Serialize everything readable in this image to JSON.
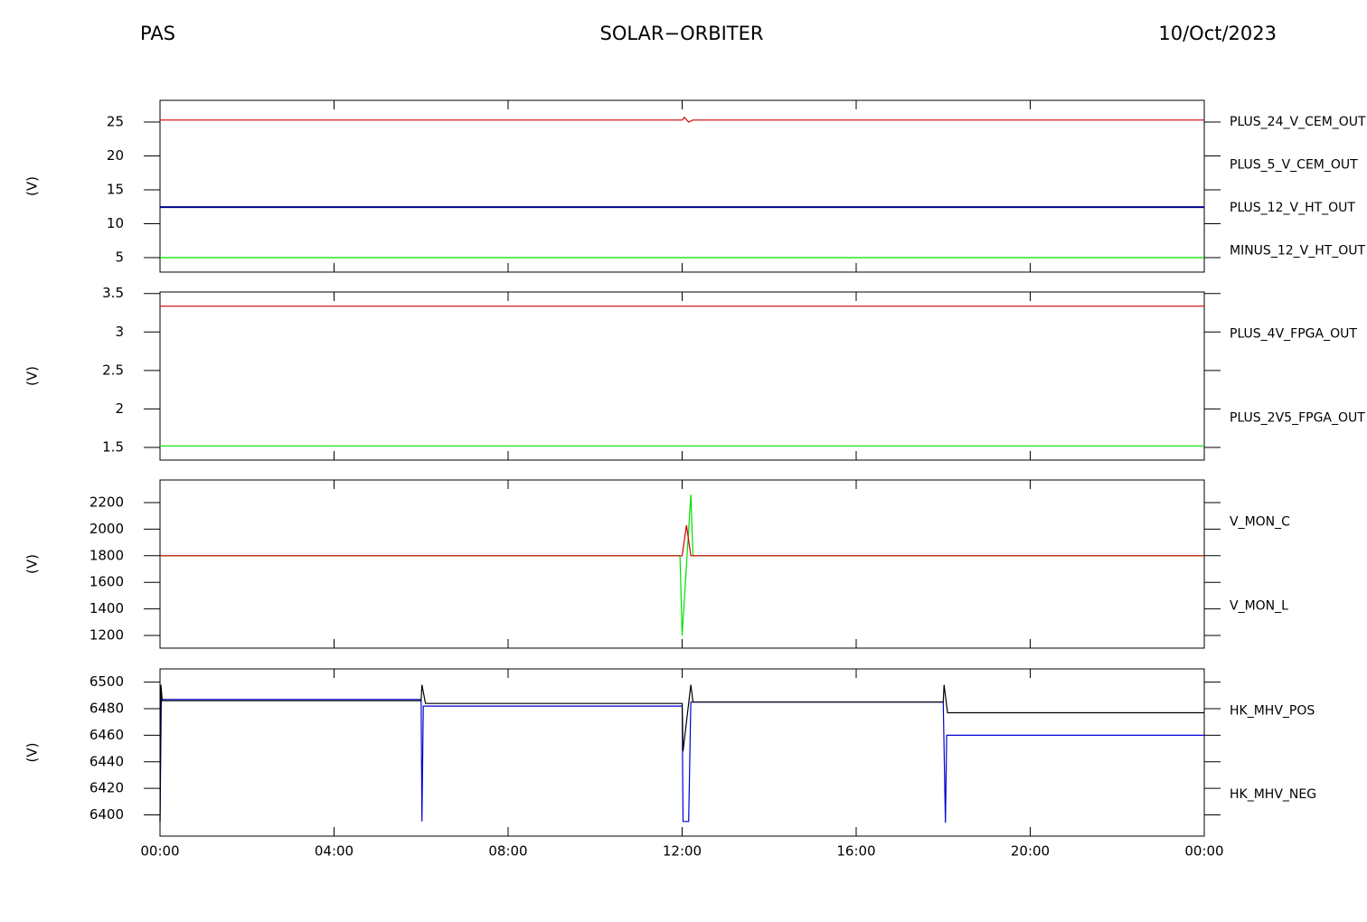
{
  "header": {
    "left": "PAS",
    "center": "SOLAR−ORBITER",
    "right": "10/Oct/2023"
  },
  "chart_data": [
    {
      "type": "line",
      "ylabel": "(V)",
      "xlim": [
        0,
        24
      ],
      "ylim": [
        2.87,
        28.2
      ],
      "yticks": [
        5,
        10,
        15,
        20,
        25
      ],
      "xticks": [
        {
          "value": 0,
          "label": "00:00"
        },
        {
          "value": 4,
          "label": "04:00"
        },
        {
          "value": 8,
          "label": "08:00"
        },
        {
          "value": 12,
          "label": "12:00"
        },
        {
          "value": 16,
          "label": "16:00"
        },
        {
          "value": 20,
          "label": "20:00"
        },
        {
          "value": 24,
          "label": "00:00"
        }
      ],
      "series": [
        {
          "name": "PLUS_24_V_CEM_OUT",
          "color": "#d40000",
          "x": [
            0,
            12,
            12.05,
            12.15,
            12.25,
            24
          ],
          "values": [
            25.3,
            25.3,
            25.7,
            25.0,
            25.3,
            25.3
          ]
        },
        {
          "name": "PLUS_5_V_CEM_OUT",
          "color": "#00e000",
          "x": [
            0,
            24
          ],
          "values": [
            5,
            5
          ]
        },
        {
          "name": "PLUS_12_V_HT_OUT",
          "color": "#000090",
          "x": [
            0,
            24
          ],
          "values": [
            12.45,
            12.45
          ]
        },
        {
          "name": "MINUS_12_V_HT_OUT",
          "color": "#000000",
          "x": [
            0,
            24
          ],
          "values": [
            12.45,
            12.45
          ]
        }
      ]
    },
    {
      "type": "line",
      "ylabel": "(V)",
      "xlim": [
        0,
        24
      ],
      "ylim": [
        1.335,
        3.52
      ],
      "yticks": [
        1.5,
        2.0,
        2.5,
        3.0,
        3.5
      ],
      "xticks": [
        {
          "value": 0,
          "label": "00:00"
        },
        {
          "value": 4,
          "label": "04:00"
        },
        {
          "value": 8,
          "label": "08:00"
        },
        {
          "value": 12,
          "label": "12:00"
        },
        {
          "value": 16,
          "label": "16:00"
        },
        {
          "value": 20,
          "label": "20:00"
        },
        {
          "value": 24,
          "label": "00:00"
        }
      ],
      "series": [
        {
          "name": "PLUS_4V_FPGA_OUT",
          "color": "#d40000",
          "x": [
            0,
            24
          ],
          "values": [
            3.335,
            3.335
          ]
        },
        {
          "name": "PLUS_2V5_FPGA_OUT",
          "color": "#00e000",
          "x": [
            0,
            24
          ],
          "values": [
            1.52,
            1.52
          ]
        }
      ]
    },
    {
      "type": "line",
      "ylabel": "(V)",
      "xlim": [
        0,
        24
      ],
      "ylim": [
        1105,
        2370
      ],
      "yticks": [
        1200,
        1400,
        1600,
        1800,
        2000,
        2200
      ],
      "xticks": [
        {
          "value": 0,
          "label": "00:00"
        },
        {
          "value": 4,
          "label": "04:00"
        },
        {
          "value": 8,
          "label": "08:00"
        },
        {
          "value": 12,
          "label": "12:00"
        },
        {
          "value": 16,
          "label": "16:00"
        },
        {
          "value": 20,
          "label": "20:00"
        },
        {
          "value": 24,
          "label": "00:00"
        }
      ],
      "series": [
        {
          "name": "V_MON_C",
          "color": "#d40000",
          "x": [
            0,
            12,
            12.1,
            12.2,
            24
          ],
          "values": [
            1800,
            1800,
            2030,
            1800,
            1800
          ]
        },
        {
          "name": "V_MON_L",
          "color": "#00e000",
          "x": [
            0,
            11.95,
            12.0,
            12.2,
            12.25,
            24
          ],
          "values": [
            1800,
            1800,
            1200,
            2260,
            1800,
            1800
          ]
        }
      ]
    },
    {
      "type": "line",
      "ylabel": "(V)",
      "xlim": [
        0,
        24
      ],
      "ylim": [
        6384,
        6510
      ],
      "yticks": [
        6400,
        6420,
        6440,
        6460,
        6480,
        6500
      ],
      "xticks": [
        {
          "value": 0,
          "label": "00:00"
        },
        {
          "value": 4,
          "label": "04:00"
        },
        {
          "value": 8,
          "label": "08:00"
        },
        {
          "value": 12,
          "label": "12:00"
        },
        {
          "value": 16,
          "label": "16:00"
        },
        {
          "value": 20,
          "label": "20:00"
        },
        {
          "value": 24,
          "label": "00:00"
        }
      ],
      "series": [
        {
          "name": "HK_MHV_POS",
          "color": "#000000",
          "x": [
            0,
            0.02,
            0.05,
            6,
            6.02,
            6.1,
            12,
            12.02,
            12.2,
            12.25,
            18,
            18.02,
            18.1,
            24
          ],
          "values": [
            6395,
            6498,
            6486,
            6486,
            6498,
            6484,
            6484,
            6448,
            6498,
            6485,
            6485,
            6498,
            6477,
            6477
          ]
        },
        {
          "name": "HK_MHV_NEG",
          "color": "#0000d0",
          "x": [
            0,
            0.03,
            0.08,
            6,
            6.02,
            6.05,
            12,
            12.02,
            12.15,
            12.2,
            18,
            18.05,
            18.08,
            24
          ],
          "values": [
            6395,
            6487,
            6487,
            6487,
            6395,
            6482,
            6482,
            6395,
            6395,
            6485,
            6485,
            6394,
            6460,
            6460
          ]
        }
      ]
    }
  ]
}
